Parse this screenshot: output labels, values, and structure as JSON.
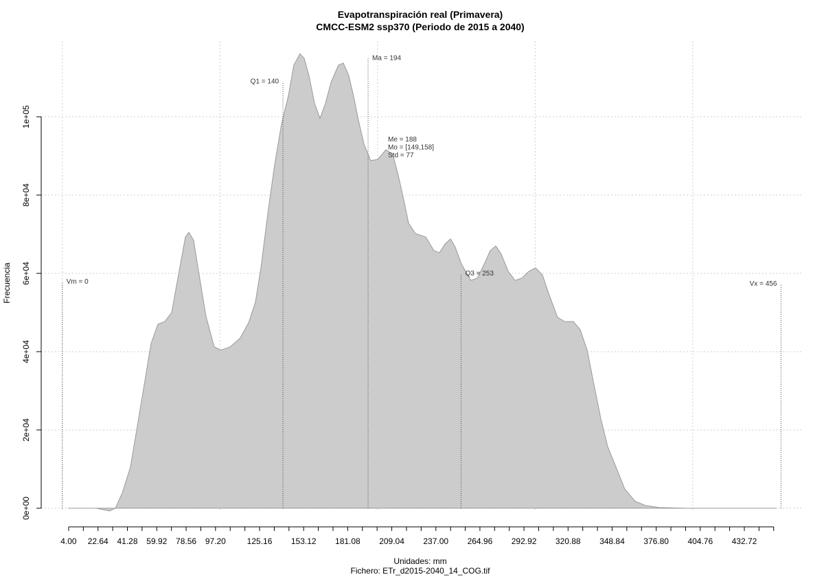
{
  "chart_data": {
    "type": "area",
    "title": "Evapotranspiración real (Primavera)",
    "subtitle": "CMCC-ESM2 ssp370 (Periodo de 2015 a 2040)",
    "x_label": "Unidades: mm",
    "y_label": "Frecuencia",
    "footnote": "Fichero: ETr_d2015-2040_14_COG.tif",
    "color": "#cccccc",
    "line_color": "#999999",
    "grid": true,
    "x": [
      4,
      21.4,
      25.8,
      30.1,
      33.6,
      38,
      43.2,
      47.6,
      52,
      56.3,
      60.6,
      65,
      69.4,
      73.7,
      78.1,
      80.3,
      83.3,
      86.8,
      91.1,
      96.4,
      100.7,
      106.4,
      112.9,
      118.2,
      122.5,
      126,
      130.4,
      134.7,
      139.1,
      143.4,
      146.9,
      150.8,
      153.5,
      156.5,
      160,
      163.5,
      167,
      170.5,
      175.2,
      178.3,
      181.8,
      184.8,
      187.9,
      191.4,
      195.7,
      200.1,
      205.3,
      209.7,
      213.1,
      216.6,
      219.7,
      224,
      230.6,
      235.8,
      239.3,
      242.8,
      246.3,
      249.3,
      253.3,
      259.3,
      263.3,
      267.6,
      271.5,
      275,
      278.5,
      282.9,
      287.2,
      291.6,
      295.9,
      300.3,
      304.6,
      309,
      314.2,
      318.6,
      324.3,
      328.6,
      333,
      337.3,
      341.7,
      346,
      351.3,
      356.9,
      363.5,
      370,
      378.7,
      396.2,
      452.8
    ],
    "values": [
      0,
      0,
      -350,
      -700,
      0,
      3860,
      10500,
      21000,
      31600,
      42100,
      47000,
      47700,
      50000,
      59600,
      69300,
      70500,
      68400,
      59600,
      49100,
      41200,
      40400,
      41200,
      43500,
      47400,
      52600,
      61400,
      75400,
      87700,
      98200,
      105300,
      113200,
      116100,
      114900,
      110500,
      103500,
      99600,
      103500,
      108800,
      113200,
      113700,
      110500,
      105300,
      99100,
      93000,
      88800,
      89100,
      91600,
      90400,
      85100,
      78900,
      72800,
      70200,
      69300,
      65800,
      65300,
      67500,
      68800,
      66700,
      62300,
      58200,
      58800,
      62300,
      65800,
      67000,
      64900,
      60500,
      58200,
      58800,
      60500,
      61400,
      59600,
      54400,
      48800,
      47700,
      47700,
      45600,
      40400,
      31600,
      22800,
      15800,
      10500,
      4900,
      1750,
      700,
      175,
      0,
      0
    ],
    "xlim": [
      -13.4,
      470.2
    ],
    "ylim": [
      -4400,
      119300
    ],
    "xticks": [
      {
        "value": 4,
        "label": "4.00"
      },
      22.64,
      41.28,
      59.92,
      78.56,
      {
        "value": 97.2,
        "label": "97.20"
      },
      125.16,
      153.12,
      181.08,
      209.04,
      {
        "value": 237,
        "label": "237.00"
      },
      264.96,
      292.92,
      320.88,
      348.84,
      {
        "value": 376.8,
        "label": "376.80"
      },
      404.76,
      432.72
    ],
    "x_minor_ticks": [
      13.32,
      31.96,
      50.6,
      69.24,
      87.88,
      106.52,
      115.84,
      134.48,
      143.8,
      162.44,
      171.76,
      190.4,
      199.72,
      218.36,
      227.68,
      246.32,
      255.64,
      274.28,
      283.6,
      302.24,
      311.56,
      330.2,
      339.52,
      358.16,
      367.48,
      386.12,
      395.44,
      414.08,
      423.4,
      442.04,
      451.36
    ],
    "x_grid": [
      0,
      100,
      200,
      300,
      400
    ],
    "yticks": [
      {
        "value": 0,
        "label": "0e+00"
      },
      {
        "value": 20000,
        "label": "2e+04"
      },
      {
        "value": 40000,
        "label": "4e+04"
      },
      {
        "value": 60000,
        "label": "6e+04"
      },
      {
        "value": 80000,
        "label": "8e+04"
      },
      {
        "value": 100000,
        "label": "1e+05"
      }
    ],
    "markers": [
      {
        "label": "Vm = 0",
        "x": 0,
        "top": 57900,
        "side": "right"
      },
      {
        "label": "Q1 = 140",
        "x": 140,
        "top": 109000,
        "side": "left"
      },
      {
        "label": "Ma = 194",
        "x": 194,
        "top": 115000,
        "side": "right"
      },
      {
        "label": "Q3 = 253",
        "x": 253,
        "top": 60000,
        "side": "right"
      },
      {
        "label": "Vx = 456",
        "x": 456,
        "top": 57400,
        "side": "left"
      }
    ],
    "stats_text": [
      "Me = 188",
      "Mo = [149,158]",
      "Std = 77"
    ]
  }
}
